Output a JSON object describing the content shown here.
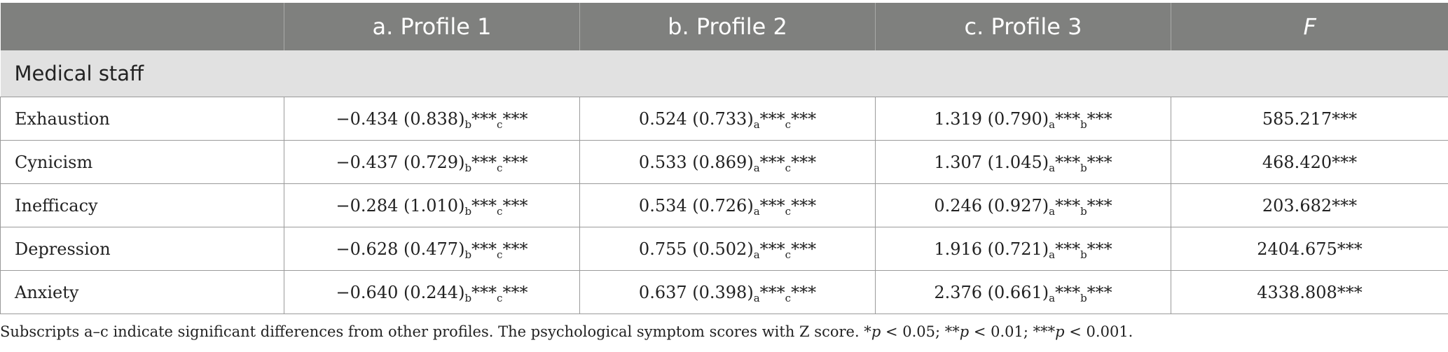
{
  "table": {
    "headers": [
      "",
      "a. Profile 1",
      "b. Profile 2",
      "c. Profile 3",
      "F"
    ],
    "group_label": "Medical staff",
    "rows": [
      {
        "label": "Exhaustion",
        "p1": {
          "val": "−0.434 (0.838)",
          "s1": "b",
          "st1": "***",
          "s2": "c",
          "st2": "***"
        },
        "p2": {
          "val": "0.524 (0.733)",
          "s1": "a",
          "st1": "***",
          "s2": "c",
          "st2": "***"
        },
        "p3": {
          "val": "1.319 (0.790)",
          "s1": "a",
          "st1": "***",
          "s2": "b",
          "st2": "***"
        },
        "f": "585.217***"
      },
      {
        "label": "Cynicism",
        "p1": {
          "val": "−0.437 (0.729)",
          "s1": "b",
          "st1": "***",
          "s2": "c",
          "st2": "***"
        },
        "p2": {
          "val": "0.533 (0.869)",
          "s1": "a",
          "st1": "***",
          "s2": "c",
          "st2": "***"
        },
        "p3": {
          "val": "1.307 (1.045)",
          "s1": "a",
          "st1": "***",
          "s2": "b",
          "st2": "***"
        },
        "f": "468.420***"
      },
      {
        "label": "Inefficacy",
        "p1": {
          "val": "−0.284 (1.010)",
          "s1": "b",
          "st1": "***",
          "s2": "c",
          "st2": "***"
        },
        "p2": {
          "val": "0.534 (0.726)",
          "s1": "a",
          "st1": "***",
          "s2": "c",
          "st2": "***"
        },
        "p3": {
          "val": "0.246 (0.927)",
          "s1": "a",
          "st1": "***",
          "s2": "b",
          "st2": "***"
        },
        "f": "203.682***"
      },
      {
        "label": "Depression",
        "p1": {
          "val": "−0.628 (0.477)",
          "s1": "b",
          "st1": "***",
          "s2": "c",
          "st2": "***"
        },
        "p2": {
          "val": "0.755 (0.502)",
          "s1": "a",
          "st1": "***",
          "s2": "c",
          "st2": "***"
        },
        "p3": {
          "val": "1.916 (0.721)",
          "s1": "a",
          "st1": "***",
          "s2": "b",
          "st2": "***"
        },
        "f": "2404.675***"
      },
      {
        "label": "Anxiety",
        "p1": {
          "val": "−0.640 (0.244)",
          "s1": "b",
          "st1": "***",
          "s2": "c",
          "st2": "***"
        },
        "p2": {
          "val": "0.637 (0.398)",
          "s1": "a",
          "st1": "***",
          "s2": "c",
          "st2": "***"
        },
        "p3": {
          "val": "2.376 (0.661)",
          "s1": "a",
          "st1": "***",
          "s2": "b",
          "st2": "***"
        },
        "f": "4338.808***"
      }
    ]
  },
  "footnote": {
    "text": "Subscripts a–c indicate significant differences from other profiles. The psychological symptom scores with Z score. *",
    "p1_var": "p",
    "p1_rest": " < 0.05; **",
    "p2_var": "p",
    "p2_rest": " < 0.01; ***",
    "p3_var": "p",
    "p3_rest": " < 0.001."
  }
}
